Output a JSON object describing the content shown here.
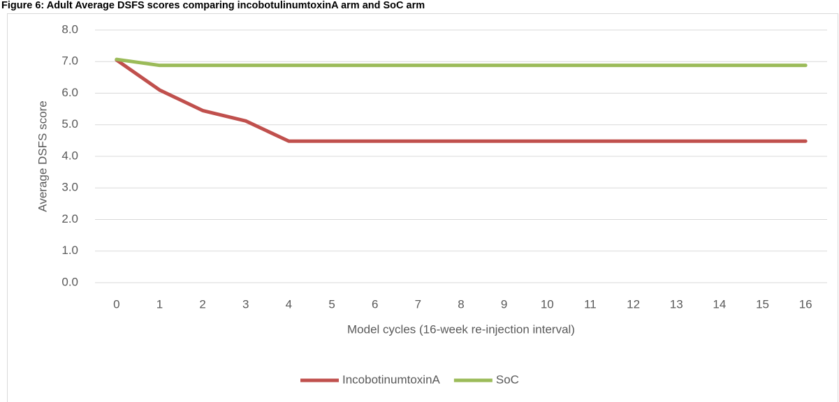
{
  "chart_data": {
    "type": "line",
    "title": "Figure 6: Adult Average DSFS scores comparing incobotulinumtoxinA arm and SoC arm",
    "x_label": "Model cycles (16-week re-injection interval)",
    "y_label": "Average DSFS score",
    "categories": [
      "0",
      "1",
      "2",
      "3",
      "4",
      "5",
      "6",
      "7",
      "8",
      "9",
      "10",
      "11",
      "12",
      "13",
      "14",
      "15",
      "16"
    ],
    "series": [
      {
        "name": "IncobotinumtoxinA",
        "color": "#c0504d",
        "values": [
          7.05,
          6.1,
          5.45,
          5.12,
          4.48,
          4.48,
          4.48,
          4.48,
          4.48,
          4.48,
          4.48,
          4.48,
          4.48,
          4.48,
          4.48,
          4.48,
          4.48
        ]
      },
      {
        "name": "SoC",
        "color": "#9bbb59",
        "values": [
          7.07,
          6.88,
          6.88,
          6.88,
          6.88,
          6.88,
          6.88,
          6.88,
          6.88,
          6.88,
          6.88,
          6.88,
          6.88,
          6.88,
          6.88,
          6.88,
          6.88
        ]
      }
    ],
    "ylim": [
      0,
      8
    ],
    "yticks": [
      {
        "value": 0,
        "label": "0.0"
      },
      {
        "value": 1,
        "label": "1.0"
      },
      {
        "value": 2,
        "label": "2.0"
      },
      {
        "value": 3,
        "label": "3.0"
      },
      {
        "value": 4,
        "label": "4.0"
      },
      {
        "value": 5,
        "label": "5.0"
      },
      {
        "value": 6,
        "label": "6.0"
      },
      {
        "value": 7,
        "label": "7.0"
      },
      {
        "value": 8,
        "label": "8.0"
      }
    ],
    "grid": true,
    "legend": "bottom"
  }
}
